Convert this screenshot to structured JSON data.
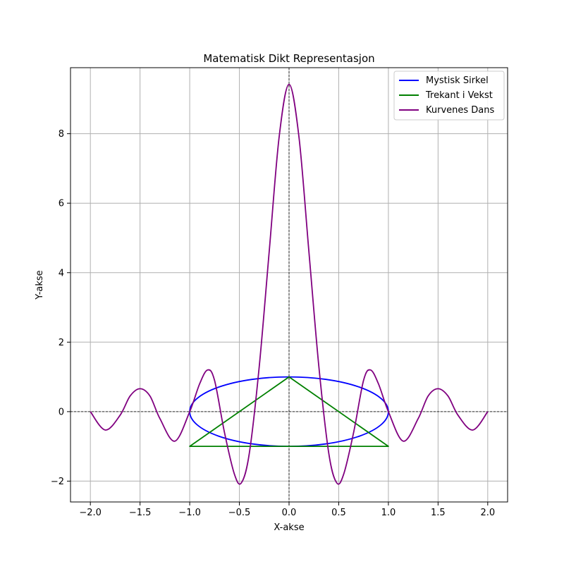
{
  "chart_data": {
    "type": "line",
    "title": "Matematisk Dikt Representasjon",
    "xlabel": "X-akse",
    "ylabel": "Y-akse",
    "xlim": [
      -2.2,
      2.2
    ],
    "ylim": [
      -2.6,
      9.9
    ],
    "xticks": [
      -2.0,
      -1.5,
      -1.0,
      -0.5,
      0.0,
      0.5,
      1.0,
      1.5,
      2.0
    ],
    "xtick_labels": [
      "−2.0",
      "−1.5",
      "−1.0",
      "−0.5",
      "0.0",
      "0.5",
      "1.0",
      "1.5",
      "2.0"
    ],
    "yticks": [
      -2,
      0,
      2,
      4,
      6,
      8
    ],
    "ytick_labels": [
      "−2",
      "0",
      "2",
      "4",
      "6",
      "8"
    ],
    "grid": true,
    "reference_lines": {
      "x": 0,
      "y": 0,
      "style": "dashed",
      "color": "#000000"
    },
    "legend": {
      "location": "top-right"
    },
    "series": [
      {
        "name": "Mystisk Sirkel",
        "color": "#0000ff",
        "shape": "ellipse",
        "center": [
          0,
          0
        ],
        "radius_x": 1,
        "radius_y": 1,
        "x": [
          1.0,
          0.966,
          0.866,
          0.707,
          0.5,
          0.259,
          0.0,
          -0.259,
          -0.5,
          -0.707,
          -0.866,
          -0.966,
          -1.0,
          -0.966,
          -0.866,
          -0.707,
          -0.5,
          -0.259,
          0.0,
          0.259,
          0.5,
          0.707,
          0.866,
          0.966,
          1.0
        ],
        "y": [
          0.0,
          0.259,
          0.5,
          0.707,
          0.866,
          0.966,
          1.0,
          0.966,
          0.866,
          0.707,
          0.5,
          0.259,
          0.0,
          -0.259,
          -0.5,
          -0.707,
          -0.866,
          -0.966,
          -1.0,
          -0.966,
          -0.866,
          -0.707,
          -0.5,
          -0.259,
          0.0
        ]
      },
      {
        "name": "Trekant i Vekst",
        "color": "#008000",
        "x": [
          0,
          1,
          -1,
          0
        ],
        "y": [
          1,
          -1,
          -1,
          1
        ]
      },
      {
        "name": "Kurvenes Dans",
        "color": "#800080",
        "x": [
          -2.0,
          -1.85,
          -1.7,
          -1.6,
          -1.5,
          -1.4,
          -1.3,
          -1.15,
          -1.0,
          -0.9,
          -0.82,
          -0.75,
          -0.65,
          -0.55,
          -0.48,
          -0.4,
          -0.3,
          -0.2,
          -0.1,
          0.0,
          0.1,
          0.2,
          0.3,
          0.4,
          0.48,
          0.55,
          0.65,
          0.75,
          0.82,
          0.9,
          1.0,
          1.15,
          1.3,
          1.4,
          1.5,
          1.6,
          1.7,
          1.85,
          2.0
        ],
        "y": [
          0.0,
          -0.53,
          -0.1,
          0.45,
          0.66,
          0.45,
          -0.2,
          -0.85,
          0.0,
          0.8,
          1.2,
          0.9,
          -0.6,
          -1.8,
          -2.05,
          -1.2,
          1.3,
          4.6,
          7.9,
          9.42,
          7.9,
          4.6,
          1.3,
          -1.2,
          -2.05,
          -1.8,
          -0.6,
          0.9,
          1.2,
          0.8,
          0.0,
          -0.85,
          -0.2,
          0.45,
          0.66,
          0.45,
          -0.1,
          -0.53,
          0.0
        ]
      }
    ]
  }
}
